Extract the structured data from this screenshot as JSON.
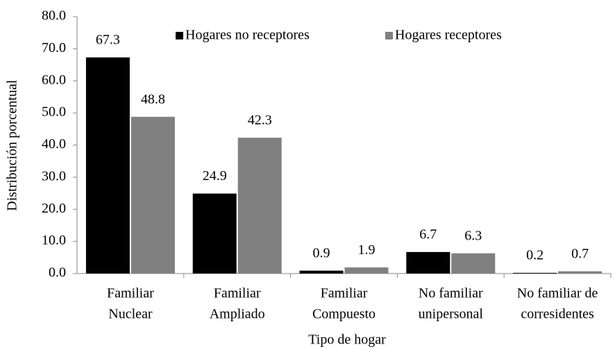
{
  "chart_data": {
    "type": "bar",
    "categories": [
      [
        "Familiar",
        "Nuclear"
      ],
      [
        "Familiar",
        "Ampliado"
      ],
      [
        "Familiar",
        "Compuesto"
      ],
      [
        "No familiar",
        "unipersonal"
      ],
      [
        "No familiar de",
        "corresidentes"
      ]
    ],
    "series": [
      {
        "name": "Hogares no receptores",
        "color": "#000000",
        "values": [
          67.3,
          24.9,
          0.9,
          6.7,
          0.2
        ]
      },
      {
        "name": "Hogares receptores",
        "color": "#808080",
        "values": [
          48.8,
          42.3,
          1.9,
          6.3,
          0.7
        ]
      }
    ],
    "xlabel": "Tipo de hogar",
    "ylabel": "Distribución porcentual",
    "ylim": [
      0,
      80
    ],
    "yticks": [
      {
        "value": 0,
        "label": "0.0"
      },
      {
        "value": 10,
        "label": "10.0"
      },
      {
        "value": 20,
        "label": "20.0"
      },
      {
        "value": 30,
        "label": "30.0"
      },
      {
        "value": 40,
        "label": "40.0"
      },
      {
        "value": 50,
        "label": "50.0"
      },
      {
        "value": 60,
        "label": "60.0"
      },
      {
        "value": 70,
        "label": "70.0"
      },
      {
        "value": 80,
        "label": "80.0"
      }
    ],
    "legend": "top",
    "grid": false
  }
}
